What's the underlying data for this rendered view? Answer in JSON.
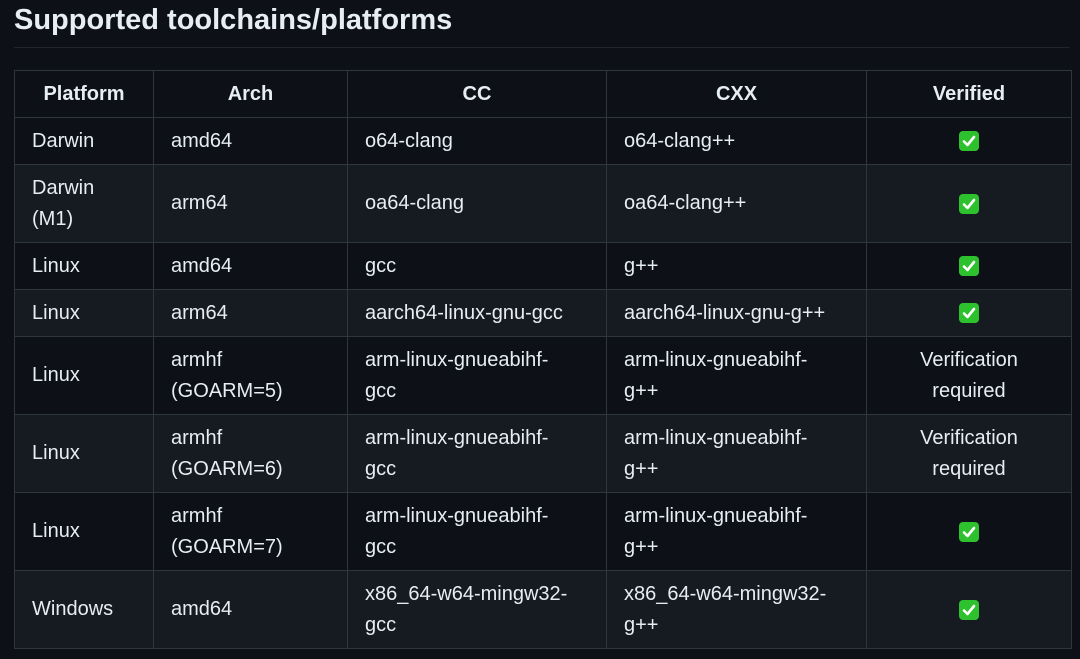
{
  "title": "Supported toolchains/platforms",
  "columns": [
    "Platform",
    "Arch",
    "CC",
    "CXX",
    "Verified"
  ],
  "rows": [
    {
      "platform": "Darwin",
      "arch": "amd64",
      "cc": "o64-clang",
      "cxx": "o64-clang++",
      "verified": true,
      "verified_text": ""
    },
    {
      "platform": "Darwin (M1)",
      "arch": "arm64",
      "cc": "oa64-clang",
      "cxx": "oa64-clang++",
      "verified": true,
      "verified_text": ""
    },
    {
      "platform": "Linux",
      "arch": "amd64",
      "cc": "gcc",
      "cxx": "g++",
      "verified": true,
      "verified_text": ""
    },
    {
      "platform": "Linux",
      "arch": "arm64",
      "cc": "aarch64-linux-gnu-gcc",
      "cxx": "aarch64-linux-gnu-g++",
      "verified": true,
      "verified_text": ""
    },
    {
      "platform": "Linux",
      "arch": "armhf (GOARM=5)",
      "cc": "arm-linux-gnueabihf-gcc",
      "cxx": "arm-linux-gnueabihf-g++",
      "verified": false,
      "verified_text": "Verification required"
    },
    {
      "platform": "Linux",
      "arch": "armhf (GOARM=6)",
      "cc": "arm-linux-gnueabihf-gcc",
      "cxx": "arm-linux-gnueabihf-g++",
      "verified": false,
      "verified_text": "Verification required"
    },
    {
      "platform": "Linux",
      "arch": "armhf (GOARM=7)",
      "cc": "arm-linux-gnueabihf-gcc",
      "cxx": "arm-linux-gnueabihf-g++",
      "verified": true,
      "verified_text": ""
    },
    {
      "platform": "Windows",
      "arch": "amd64",
      "cc": "x86_64-w64-mingw32-gcc",
      "cxx": "x86_64-w64-mingw32-g++",
      "verified": true,
      "verified_text": ""
    }
  ],
  "colors": {
    "background": "#0d1117",
    "row_alt": "#161b22",
    "border": "#30363d",
    "check": "#2ec12e"
  }
}
